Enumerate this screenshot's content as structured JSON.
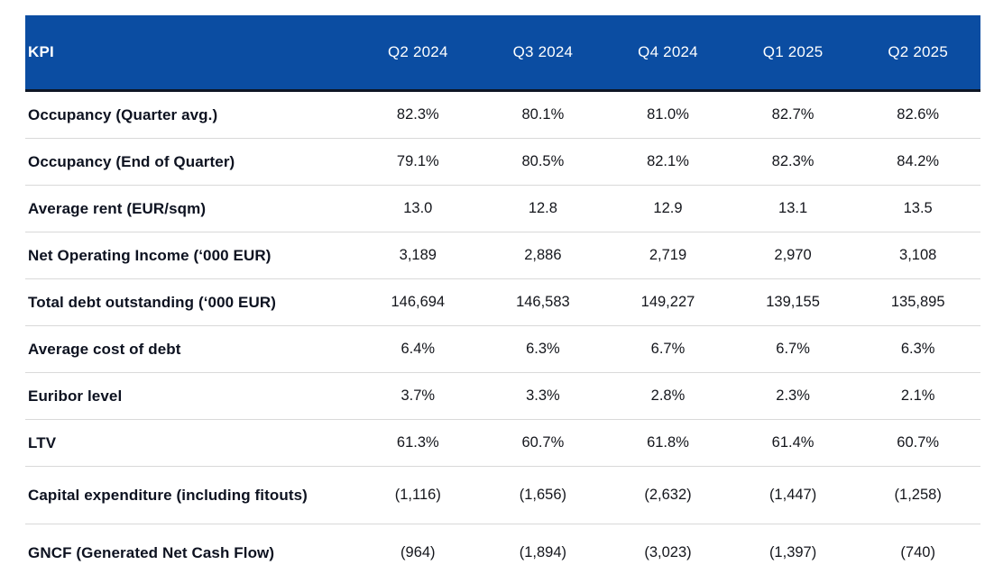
{
  "table": {
    "header": {
      "kpi_label": "KPI",
      "quarters": [
        "Q2 2024",
        "Q3 2024",
        "Q4 2024",
        "Q1 2025",
        "Q2 2025"
      ]
    },
    "rows": [
      {
        "label": "Occupancy (Quarter avg.)",
        "values": [
          "82.3%",
          "80.1%",
          "81.0%",
          "82.7%",
          "82.6%"
        ],
        "tall": false
      },
      {
        "label": "Occupancy (End of Quarter)",
        "values": [
          "79.1%",
          "80.5%",
          "82.1%",
          "82.3%",
          "84.2%"
        ],
        "tall": false
      },
      {
        "label": "Average rent (EUR/sqm)",
        "values": [
          "13.0",
          "12.8",
          "12.9",
          "13.1",
          "13.5"
        ],
        "tall": false
      },
      {
        "label": "Net Operating Income (‘000 EUR)",
        "values": [
          "3,189",
          "2,886",
          "2,719",
          "2,970",
          "3,108"
        ],
        "tall": false
      },
      {
        "label": "Total debt outstanding (‘000 EUR)",
        "values": [
          "146,694",
          "146,583",
          "149,227",
          "139,155",
          "135,895"
        ],
        "tall": false
      },
      {
        "label": "Average cost of debt",
        "values": [
          "6.4%",
          "6.3%",
          "6.7%",
          "6.7%",
          "6.3%"
        ],
        "tall": false
      },
      {
        "label": "Euribor level",
        "values": [
          "3.7%",
          "3.3%",
          "2.8%",
          "2.3%",
          "2.1%"
        ],
        "tall": false
      },
      {
        "label": "LTV",
        "values": [
          "61.3%",
          "60.7%",
          "61.8%",
          "61.4%",
          "60.7%"
        ],
        "tall": false
      },
      {
        "label": "Capital expenditure (including fitouts)",
        "values": [
          "(1,116)",
          "(1,656)",
          "(2,632)",
          "(1,447)",
          "(1,258)"
        ],
        "tall": true
      },
      {
        "label": "GNCF (Generated Net Cash Flow)",
        "values": [
          "(964)",
          "(1,894)",
          "(3,023)",
          "(1,397)",
          "(740)"
        ],
        "tall": true
      }
    ],
    "colors": {
      "header_bg": "#0b4da2",
      "header_text": "#ffffff",
      "header_rule": "#0e1625",
      "row_divider": "#d9d9d9",
      "label_text": "#0d1220"
    }
  },
  "chart_data": {
    "type": "table",
    "columns": [
      "KPI",
      "Q2 2024",
      "Q3 2024",
      "Q4 2024",
      "Q1 2025",
      "Q2 2025"
    ],
    "rows": [
      [
        "Occupancy (Quarter avg.)",
        "82.3%",
        "80.1%",
        "81.0%",
        "82.7%",
        "82.6%"
      ],
      [
        "Occupancy (End of Quarter)",
        "79.1%",
        "80.5%",
        "82.1%",
        "82.3%",
        "84.2%"
      ],
      [
        "Average rent (EUR/sqm)",
        "13.0",
        "12.8",
        "12.9",
        "13.1",
        "13.5"
      ],
      [
        "Net Operating Income (‘000 EUR)",
        "3,189",
        "2,886",
        "2,719",
        "2,970",
        "3,108"
      ],
      [
        "Total debt outstanding (‘000 EUR)",
        "146,694",
        "146,583",
        "149,227",
        "139,155",
        "135,895"
      ],
      [
        "Average cost of debt",
        "6.4%",
        "6.3%",
        "6.7%",
        "6.7%",
        "6.3%"
      ],
      [
        "Euribor level",
        "3.7%",
        "3.3%",
        "2.8%",
        "2.3%",
        "2.1%"
      ],
      [
        "LTV",
        "61.3%",
        "60.7%",
        "61.8%",
        "61.4%",
        "60.7%"
      ],
      [
        "Capital expenditure (including fitouts)",
        "(1,116)",
        "(1,656)",
        "(2,632)",
        "(1,447)",
        "(1,258)"
      ],
      [
        "GNCF (Generated Net Cash Flow)",
        "(964)",
        "(1,894)",
        "(3,023)",
        "(1,397)",
        "(740)"
      ]
    ]
  }
}
